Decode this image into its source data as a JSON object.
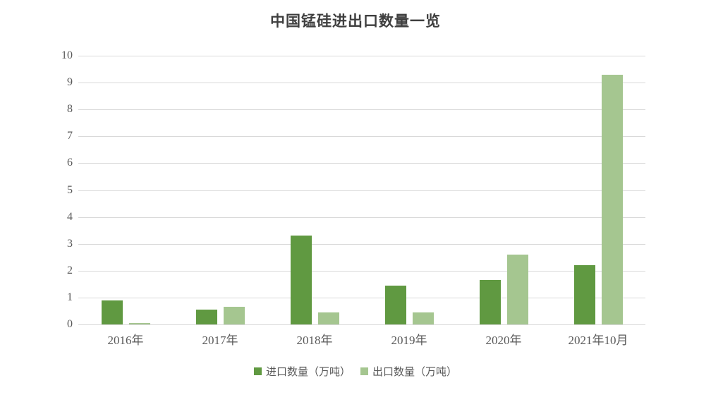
{
  "page": {
    "background": "#ffffff"
  },
  "colors": {
    "gridline": "#d9d9d9",
    "axis_text": "#595959",
    "title_text": "#3f3f3f",
    "import_series": "#609941",
    "export_series": "#a5c690"
  },
  "chart_data": {
    "type": "bar",
    "title": "中国锰硅进出口数量一览",
    "categories": [
      "2016年",
      "2017年",
      "2018年",
      "2019年",
      "2020年",
      "2021年10月"
    ],
    "series": [
      {
        "key": "import",
        "name": "进口数量（万吨）",
        "color": "#609941",
        "values": [
          0.88,
          0.55,
          3.3,
          1.45,
          1.65,
          2.2
        ]
      },
      {
        "key": "export",
        "name": "出口数量（万吨）",
        "color": "#a5c690",
        "values": [
          0.05,
          0.65,
          0.45,
          0.45,
          2.6,
          9.3
        ]
      }
    ],
    "xlabel": "",
    "ylabel": "",
    "ylim": [
      0,
      10
    ],
    "yticks": [
      0,
      1,
      2,
      3,
      4,
      5,
      6,
      7,
      8,
      9,
      10
    ],
    "grid": true,
    "legend_position": "bottom"
  }
}
